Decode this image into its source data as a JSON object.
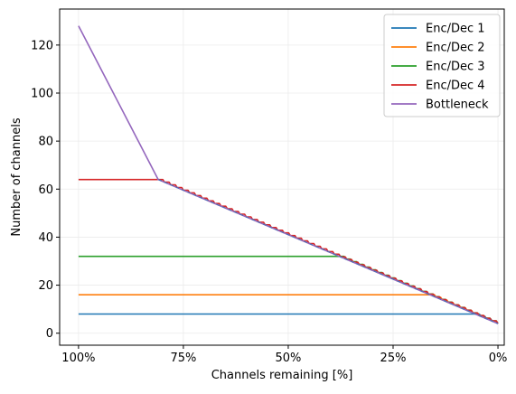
{
  "chart_data": {
    "type": "line",
    "title": "",
    "xlabel": "Channels remaining [%]",
    "ylabel": "Number of channels",
    "x_direction": "decreasing",
    "xlim": [
      104.5,
      -1.5
    ],
    "ylim": [
      -5,
      135
    ],
    "x_ticks": [
      100,
      75,
      50,
      25,
      0
    ],
    "x_tick_labels": [
      "100%",
      "75%",
      "50%",
      "25%",
      "0%"
    ],
    "y_ticks": [
      0,
      20,
      40,
      60,
      80,
      100,
      120
    ],
    "y_tick_labels": [
      "0",
      "20",
      "40",
      "60",
      "80",
      "100",
      "120"
    ],
    "grid": true,
    "legend_position": "top-right",
    "series": [
      {
        "name": "Enc/Dec 1",
        "color": "#1f77b4",
        "flat": 8,
        "start": 100
      },
      {
        "name": "Enc/Dec 2",
        "color": "#ff7f0e",
        "flat": 16,
        "start": 100
      },
      {
        "name": "Enc/Dec 3",
        "color": "#2ca02c",
        "flat": 32,
        "start": 100
      },
      {
        "name": "Enc/Dec 4",
        "color": "#d62728",
        "flat": 64,
        "start": 100
      },
      {
        "name": "Bottleneck",
        "color": "#9467bd",
        "points": [
          [
            100,
            128
          ],
          [
            81,
            64
          ],
          [
            0,
            4
          ]
        ]
      }
    ],
    "descent_line": {
      "start": [
        81,
        64
      ],
      "end": [
        0,
        4
      ]
    }
  }
}
